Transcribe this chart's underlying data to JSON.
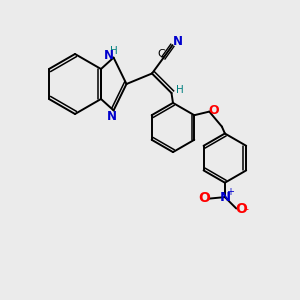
{
  "bg_color": "#ebebeb",
  "bond_color": "#000000",
  "N_color": "#0000cd",
  "H_color": "#008080",
  "O_color": "#ff0000",
  "figsize": [
    3.0,
    3.0
  ],
  "dpi": 100,
  "xlim": [
    0,
    10
  ],
  "ylim": [
    0,
    10
  ]
}
